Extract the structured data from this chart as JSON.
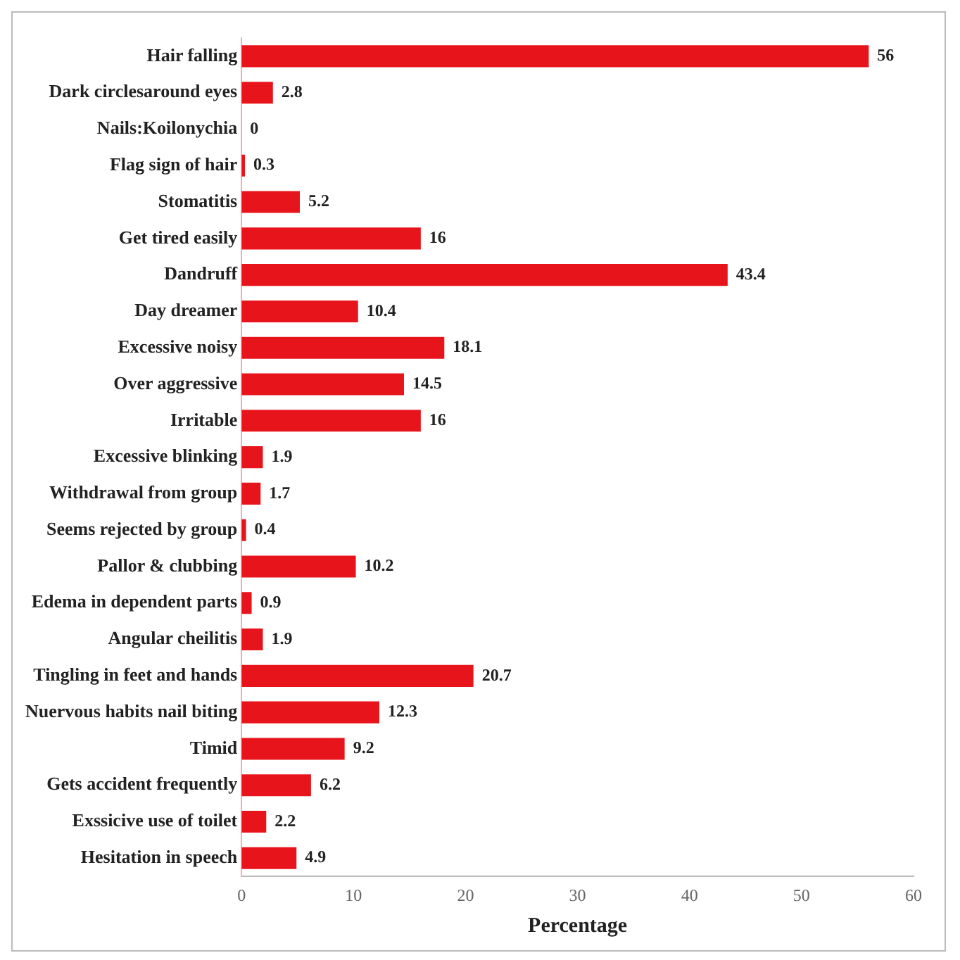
{
  "chart_data": {
    "type": "bar",
    "orientation": "horizontal",
    "xlabel": "Percentage",
    "categories": [
      "Hair falling",
      "Dark circlesaround eyes",
      "Nails:Koilonychia",
      "Flag sign of hair",
      "Stomatitis",
      "Get tired easily",
      "Dandruff",
      "Day dreamer",
      "Excessive noisy",
      "Over aggressive",
      "Irritable",
      "Excessive blinking",
      "Withdrawal from group",
      "Seems rejected by group",
      "Pallor & clubbing",
      "Edema in dependent parts",
      "Angular cheilitis",
      "Tingling in feet and hands",
      "Nuervous habits nail biting",
      "Timid",
      "Gets accident frequently",
      "Exssicive use of toilet",
      "Hesitation in speech"
    ],
    "values": [
      56,
      2.8,
      0,
      0.3,
      5.2,
      16,
      43.4,
      10.4,
      18.1,
      14.5,
      16,
      1.9,
      1.7,
      0.4,
      10.2,
      0.9,
      1.9,
      20.7,
      12.3,
      9.2,
      6.2,
      2.2,
      4.9
    ],
    "color": "#e8141b",
    "xlim": [
      0,
      60
    ],
    "xticks": [
      0,
      10,
      20,
      30,
      40,
      50,
      60
    ],
    "data_labels": true,
    "grid": false,
    "legend": false
  }
}
